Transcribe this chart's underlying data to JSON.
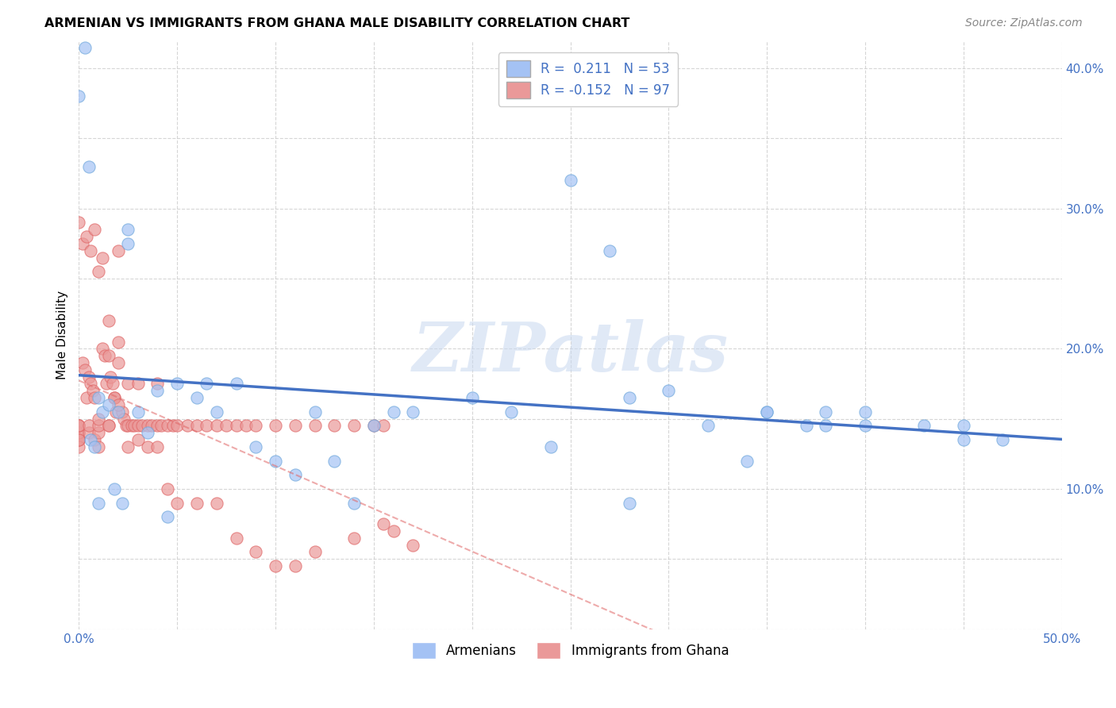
{
  "title": "ARMENIAN VS IMMIGRANTS FROM GHANA MALE DISABILITY CORRELATION CHART",
  "source": "Source: ZipAtlas.com",
  "ylabel": "Male Disability",
  "xlim": [
    0.0,
    0.5
  ],
  "ylim": [
    0.0,
    0.42
  ],
  "armenian_color": "#a4c2f4",
  "armenia_edge_color": "#6fa8dc",
  "ghana_color": "#ea9999",
  "ghana_edge_color": "#e06666",
  "trendline_armenian_color": "#4472c4",
  "trendline_ghana_color": "#e06666",
  "legend_R_armenian": "0.211",
  "legend_N_armenian": "53",
  "legend_R_ghana": "-0.152",
  "legend_N_ghana": "97",
  "armenian_x": [
    0.003,
    0.005,
    0.006,
    0.008,
    0.01,
    0.01,
    0.012,
    0.015,
    0.018,
    0.02,
    0.022,
    0.025,
    0.03,
    0.035,
    0.04,
    0.045,
    0.05,
    0.06,
    0.065,
    0.07,
    0.08,
    0.09,
    0.1,
    0.11,
    0.12,
    0.13,
    0.14,
    0.15,
    0.16,
    0.17,
    0.2,
    0.22,
    0.24,
    0.25,
    0.27,
    0.28,
    0.3,
    0.32,
    0.34,
    0.35,
    0.37,
    0.38,
    0.4,
    0.43,
    0.45,
    0.0,
    0.025,
    0.28,
    0.35,
    0.38,
    0.4,
    0.45,
    0.47
  ],
  "armenian_y": [
    0.415,
    0.33,
    0.135,
    0.13,
    0.165,
    0.09,
    0.155,
    0.16,
    0.1,
    0.155,
    0.09,
    0.285,
    0.155,
    0.14,
    0.17,
    0.08,
    0.175,
    0.165,
    0.175,
    0.155,
    0.175,
    0.13,
    0.12,
    0.11,
    0.155,
    0.12,
    0.09,
    0.145,
    0.155,
    0.155,
    0.165,
    0.155,
    0.13,
    0.32,
    0.27,
    0.09,
    0.17,
    0.145,
    0.12,
    0.155,
    0.145,
    0.155,
    0.145,
    0.145,
    0.135,
    0.38,
    0.275,
    0.165,
    0.155,
    0.145,
    0.155,
    0.145,
    0.135
  ],
  "ghana_x": [
    0.0,
    0.0,
    0.0,
    0.0,
    0.0,
    0.0,
    0.0,
    0.0,
    0.0,
    0.0,
    0.002,
    0.003,
    0.004,
    0.005,
    0.005,
    0.005,
    0.006,
    0.007,
    0.008,
    0.008,
    0.01,
    0.01,
    0.01,
    0.01,
    0.012,
    0.013,
    0.014,
    0.015,
    0.015,
    0.015,
    0.016,
    0.017,
    0.018,
    0.019,
    0.02,
    0.02,
    0.02,
    0.022,
    0.023,
    0.024,
    0.025,
    0.025,
    0.027,
    0.028,
    0.03,
    0.03,
    0.032,
    0.035,
    0.037,
    0.04,
    0.04,
    0.042,
    0.045,
    0.048,
    0.05,
    0.055,
    0.06,
    0.065,
    0.07,
    0.075,
    0.08,
    0.085,
    0.09,
    0.1,
    0.11,
    0.12,
    0.13,
    0.14,
    0.15,
    0.155,
    0.0,
    0.002,
    0.004,
    0.006,
    0.008,
    0.01,
    0.012,
    0.015,
    0.018,
    0.02,
    0.025,
    0.03,
    0.035,
    0.04,
    0.045,
    0.05,
    0.06,
    0.07,
    0.08,
    0.09,
    0.1,
    0.11,
    0.12,
    0.14,
    0.155,
    0.16,
    0.17
  ],
  "ghana_y": [
    0.135,
    0.14,
    0.135,
    0.135,
    0.14,
    0.13,
    0.145,
    0.145,
    0.135,
    0.145,
    0.19,
    0.185,
    0.165,
    0.18,
    0.14,
    0.145,
    0.175,
    0.17,
    0.165,
    0.135,
    0.14,
    0.145,
    0.15,
    0.13,
    0.2,
    0.195,
    0.175,
    0.195,
    0.145,
    0.145,
    0.18,
    0.175,
    0.165,
    0.155,
    0.205,
    0.27,
    0.19,
    0.155,
    0.15,
    0.145,
    0.175,
    0.145,
    0.145,
    0.145,
    0.145,
    0.175,
    0.145,
    0.145,
    0.145,
    0.145,
    0.175,
    0.145,
    0.145,
    0.145,
    0.145,
    0.145,
    0.145,
    0.145,
    0.145,
    0.145,
    0.145,
    0.145,
    0.145,
    0.145,
    0.145,
    0.145,
    0.145,
    0.145,
    0.145,
    0.145,
    0.29,
    0.275,
    0.28,
    0.27,
    0.285,
    0.255,
    0.265,
    0.22,
    0.165,
    0.16,
    0.13,
    0.135,
    0.13,
    0.13,
    0.1,
    0.09,
    0.09,
    0.09,
    0.065,
    0.055,
    0.045,
    0.045,
    0.055,
    0.065,
    0.075,
    0.07,
    0.06
  ],
  "watermark_text": "ZIPatlas",
  "background_color": "#ffffff",
  "grid_color": "#cccccc"
}
